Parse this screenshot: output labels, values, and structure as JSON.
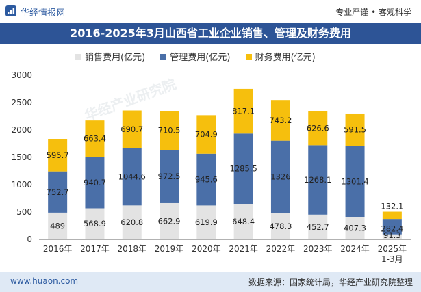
{
  "header": {
    "brand": "华经情报网",
    "slogan": "专业严谨 • 客观科学"
  },
  "title": "2016-2025年3月山西省工业企业销售、管理及财务费用",
  "watermark": "华经产业研究院",
  "footer": {
    "url": "www.huaon.com",
    "source": "数据来源：国家统计局，华经产业研究院整理"
  },
  "colors": {
    "sales": "#e3e3e3",
    "management": "#4a6fa8",
    "finance": "#f6bf0d",
    "header_bg": "#2d5496"
  },
  "chart_data": {
    "type": "bar",
    "stacked": true,
    "categories": [
      "2016年",
      "2017年",
      "2018年",
      "2019年",
      "2020年",
      "2021年",
      "2022年",
      "2023年",
      "2024年",
      "2025年\n1-3月"
    ],
    "series": [
      {
        "name": "销售费用(亿元)",
        "values": [
          489,
          568.9,
          620.8,
          662.9,
          619.9,
          648.4,
          478.3,
          452.7,
          407.3,
          91.3
        ]
      },
      {
        "name": "管理费用(亿元)",
        "values": [
          752.7,
          940.7,
          1044.6,
          972.5,
          945.6,
          1285.5,
          1326,
          1268.1,
          1301.4,
          282.4
        ]
      },
      {
        "name": "财务费用(亿元)",
        "values": [
          595.7,
          663.4,
          690.7,
          710.5,
          704.9,
          817.1,
          743.2,
          626.6,
          591.5,
          132.1
        ]
      }
    ],
    "ylim": [
      0,
      3000
    ],
    "yticks": [
      0,
      500,
      1000,
      1500,
      2000,
      2500,
      3000
    ],
    "xlabel": "",
    "ylabel": ""
  }
}
